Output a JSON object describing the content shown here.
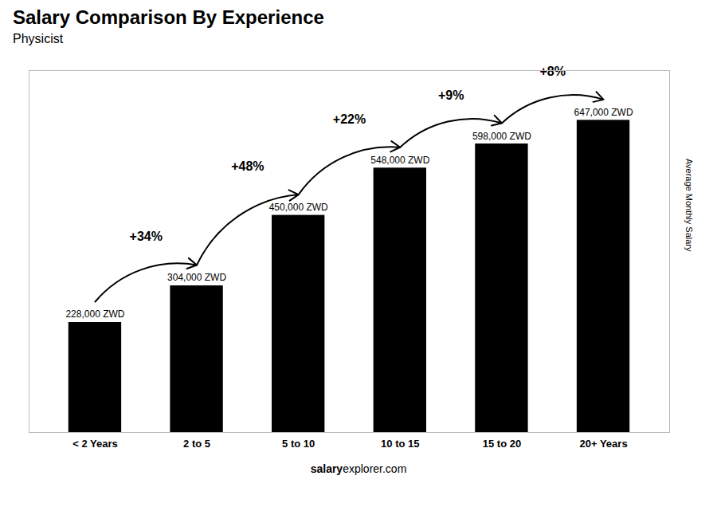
{
  "chart_data": {
    "type": "bar",
    "title": "Salary Comparison By Experience",
    "subtitle": "Physicist",
    "categories": [
      "< 2 Years",
      "2 to 5",
      "5 to 10",
      "10 to 15",
      "15 to 20",
      "20+ Years"
    ],
    "values": [
      228000,
      304000,
      450000,
      548000,
      598000,
      647000
    ],
    "value_labels": [
      "228,000 ZWD",
      "304,000 ZWD",
      "450,000 ZWD",
      "548,000 ZWD",
      "598,000 ZWD",
      "647,000 ZWD"
    ],
    "data_labels": true,
    "ylabel": "Average Monthly Salary",
    "ylim": [
      0,
      750000
    ],
    "tick_labels": "x",
    "grid": false,
    "annotations": [
      null,
      "+34%",
      "+48%",
      "+22%",
      "+9%",
      "+8%"
    ],
    "caption": [
      "salary",
      "explorer.com"
    ]
  }
}
